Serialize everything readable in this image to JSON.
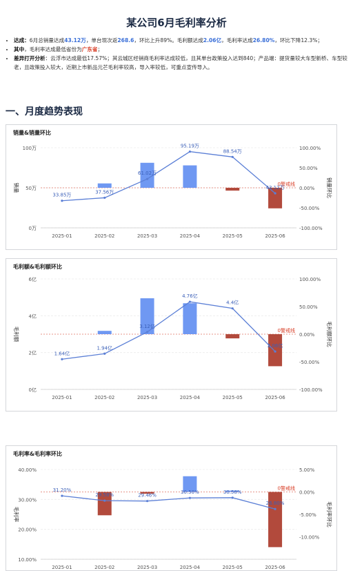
{
  "page_title": "某公司6月毛利率分析",
  "summary": [
    {
      "parts": [
        [
          "b",
          "达成："
        ],
        [
          "",
          "6月总销量达成"
        ],
        [
          "v",
          "43.12万"
        ],
        [
          "",
          "，单台现次返"
        ],
        [
          "v",
          "268.6"
        ],
        [
          "",
          "，环比上升89%。毛利额达成"
        ],
        [
          "v",
          "2.06亿"
        ],
        [
          "",
          "，毛利率达成"
        ],
        [
          "v",
          "26.80%"
        ],
        [
          "",
          "，环比下降12.3%；"
        ]
      ]
    },
    {
      "parts": [
        [
          "b",
          "其中"
        ],
        [
          "",
          "，毛利率达成最低省份为"
        ],
        [
          "r",
          "广东省"
        ],
        [
          "",
          "；"
        ]
      ]
    },
    {
      "parts": [
        [
          "b",
          "差异打开分析"
        ],
        [
          "",
          "：云浮市达成最低17.57%；其云城区经销商毛利率达成较低，且其单台政策投入达到840；产品端：提货量较大车型新桥、车型较老，且政策投入较大，近期上市新品元芒毛利率较高，导入率较低，可重点宣传导入。"
        ]
      ]
    }
  ],
  "section_title": "一、月度趋势表现",
  "chart_data": [
    {
      "title": "销量&销量环比",
      "type": "bar+line",
      "categories": [
        "2025-01",
        "2025-02",
        "2025-03",
        "2025-04",
        "2025-05",
        "2025-06"
      ],
      "series": [
        {
          "name": "销量",
          "type": "line",
          "axis": "left",
          "values": [
            33.85,
            37.56,
            61.02,
            95.19,
            88.54,
            43.12
          ],
          "labels": [
            "33.85万",
            "37.56万",
            "61.02万",
            "95.19万",
            "88.54万",
            "43.12万"
          ]
        },
        {
          "name": "销量环比",
          "type": "bar",
          "axis": "right",
          "values": [
            null,
            10.96,
            62.46,
            56.0,
            -6.99,
            -51.3
          ]
        }
      ],
      "left_axis": {
        "label": "销量",
        "ylim": [
          0,
          100
        ],
        "ticks": [
          0,
          50,
          100
        ],
        "tick_labels": [
          "0万",
          "50万",
          "100万"
        ]
      },
      "right_axis": {
        "label": "销量环比",
        "ylim": [
          -100,
          100
        ],
        "ticks": [
          100,
          50,
          0,
          -50,
          -100
        ],
        "tick_labels": [
          "100.00%",
          "50.00%",
          "0.00%",
          "-50.00%",
          "-100.00%"
        ]
      },
      "zero_label": "0警戒线"
    },
    {
      "title": "毛利额&毛利额环比",
      "type": "bar+line",
      "categories": [
        "2025-01",
        "2025-02",
        "2025-03",
        "2025-04",
        "2025-05",
        "2025-06"
      ],
      "series": [
        {
          "name": "毛利额",
          "type": "line",
          "axis": "left",
          "values": [
            1.64,
            1.94,
            3.12,
            4.76,
            4.4,
            2.06
          ],
          "labels": [
            "1.64亿",
            "1.94亿",
            "3.12亿",
            "4.76亿",
            "4.4亿",
            "2.06亿"
          ]
        },
        {
          "name": "毛利额环比",
          "type": "bar",
          "axis": "right",
          "values": [
            null,
            6.0,
            65.0,
            56.0,
            -7.6,
            -58.0
          ]
        }
      ],
      "left_axis": {
        "label": "毛利额",
        "ylim": [
          0,
          6
        ],
        "ticks": [
          0,
          2,
          4,
          6
        ],
        "tick_labels": [
          "0亿",
          "2亿",
          "4亿",
          "6亿"
        ]
      },
      "right_axis": {
        "label": "毛利额环比",
        "ylim": [
          -100,
          100
        ],
        "ticks": [
          100,
          50,
          0,
          -50,
          -100
        ],
        "tick_labels": [
          "100.00%",
          "50.00%",
          "0.00%",
          "-50.00%",
          "-100.00%"
        ]
      },
      "zero_label": "0警戒线"
    },
    {
      "title": "毛利率&毛利率环比",
      "type": "bar+line",
      "categories": [
        "2025-01",
        "2025-02",
        "2025-03",
        "2025-04",
        "2025-05",
        "2025-06"
      ],
      "series": [
        {
          "name": "毛利率",
          "type": "line",
          "axis": "left",
          "values": [
            31.2,
            29.58,
            29.46,
            30.5,
            30.58,
            26.8
          ],
          "labels": [
            "31.20%",
            "29.58%",
            "29.46%",
            "30.50%",
            "30.58%",
            "26.80%"
          ]
        },
        {
          "name": "毛利率环比",
          "type": "bar",
          "axis": "right",
          "values": [
            null,
            -5.2,
            -0.4,
            3.5,
            0.3,
            -12.3
          ]
        }
      ],
      "left_axis": {
        "label": "毛利率",
        "ylim": [
          10,
          40
        ],
        "ticks": [
          40,
          30,
          20,
          10
        ],
        "tick_labels": [
          "40.00%",
          "30.00%",
          "20.00%",
          "10.00%"
        ]
      },
      "right_axis": {
        "label": "毛利率环比",
        "ylim": [
          -15,
          5
        ],
        "ticks": [
          5,
          0,
          -5,
          -10
        ],
        "tick_labels": [
          "5.00%",
          "0.00%",
          "-5.00%",
          "-10.00%"
        ]
      },
      "zero_label": "0警戒线"
    }
  ],
  "colors": {
    "positive_bar": "#6f98f2",
    "negative_bar": "#b24a3c",
    "line": "#5b7fd6",
    "zero_line": "#e07060",
    "zero_label": "#d9412a",
    "grid": "#ececec",
    "axis_text": "#555"
  }
}
